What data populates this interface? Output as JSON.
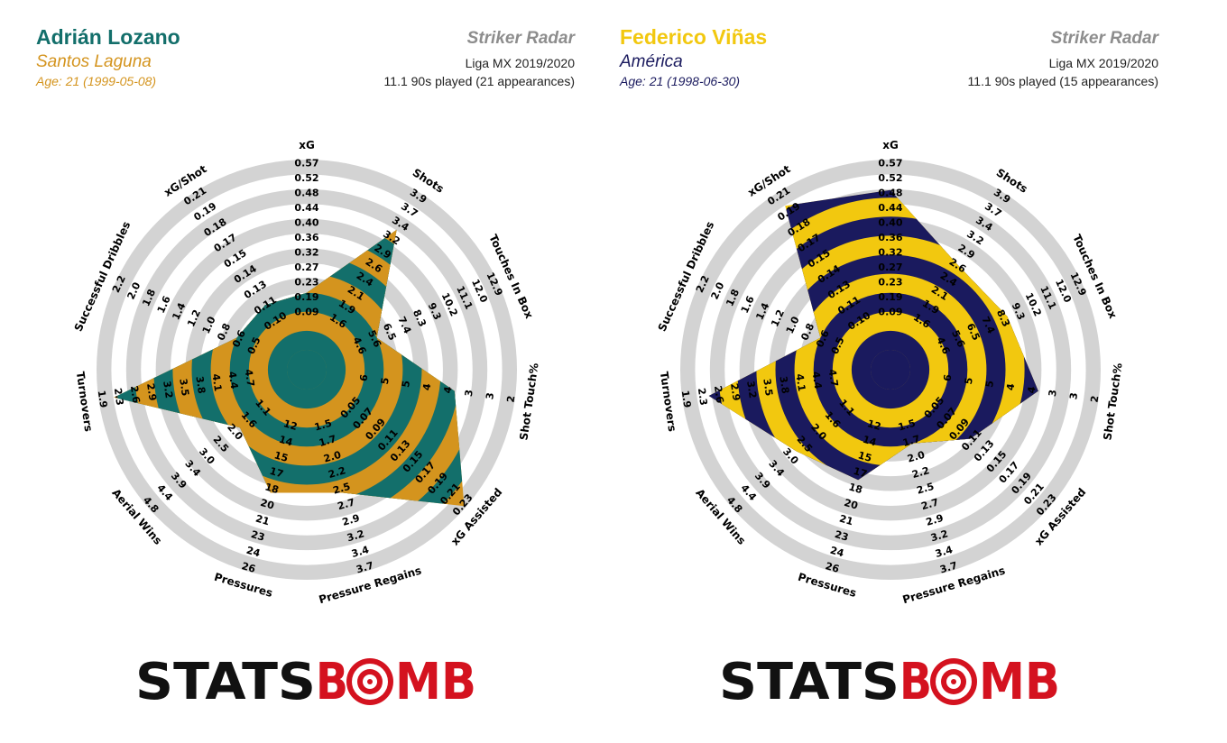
{
  "chart_data": [
    {
      "type": "radar",
      "title": "Striker Radar",
      "player": {
        "name": "Adrián Lozano",
        "club": "Santos Laguna",
        "age": "Age: 21 (1999-05-08)"
      },
      "league": "Liga MX 2019/2020",
      "played": "11.1 90s played (21 appearances)",
      "colors": {
        "name": "#136f6b",
        "club": "#d4941e",
        "age": "#d4941e",
        "band_a": "#d4941e",
        "band_b": "#136f6b",
        "ring": "#d3d3d3"
      },
      "axes": [
        {
          "label": "xG",
          "ticks": [
            "0.09",
            "0.19",
            "0.23",
            "0.27",
            "0.32",
            "0.36",
            "0.40",
            "0.44",
            "0.48",
            "0.52",
            "0.57"
          ]
        },
        {
          "label": "Shots",
          "ticks": [
            "1.6",
            "1.9",
            "2.1",
            "2.4",
            "2.6",
            "2.9",
            "3.2",
            "3.4",
            "3.7",
            "3.9"
          ]
        },
        {
          "label": "Touches In Box",
          "ticks": [
            "4.6",
            "5.6",
            "6.5",
            "7.4",
            "8.3",
            "9.3",
            "10.2",
            "11.1",
            "12.0",
            "12.9"
          ]
        },
        {
          "label": "Shot Touch%",
          "ticks": [
            "6",
            "5",
            "5",
            "4",
            "4",
            "3",
            "3",
            "2"
          ]
        },
        {
          "label": "xG Assisted",
          "ticks": [
            "0.05",
            "0.07",
            "0.09",
            "0.11",
            "0.13",
            "0.15",
            "0.17",
            "0.19",
            "0.21",
            "0.23"
          ]
        },
        {
          "label": "Pressure Regains",
          "ticks": [
            "1.5",
            "1.7",
            "2.0",
            "2.2",
            "2.5",
            "2.7",
            "2.9",
            "3.2",
            "3.4",
            "3.7"
          ]
        },
        {
          "label": "Pressures",
          "ticks": [
            "12",
            "14",
            "15",
            "17",
            "18",
            "20",
            "21",
            "23",
            "24",
            "26"
          ]
        },
        {
          "label": "Aerial Wins",
          "ticks": [
            "1.1",
            "1.6",
            "2.0",
            "2.5",
            "3.0",
            "3.4",
            "3.9",
            "4.4",
            "4.8"
          ]
        },
        {
          "label": "Turnovers",
          "ticks": [
            "4.7",
            "4.4",
            "4.1",
            "3.8",
            "3.5",
            "3.2",
            "2.9",
            "2.6",
            "2.3",
            "1.9"
          ]
        },
        {
          "label": "Successful Dribbles",
          "ticks": [
            "0.5",
            "0.6",
            "0.8",
            "1.0",
            "1.2",
            "1.4",
            "1.6",
            "1.8",
            "2.0",
            "2.2"
          ]
        },
        {
          "label": "xG/Shot",
          "ticks": [
            "0.10",
            "0.11",
            "0.13",
            "0.14",
            "0.15",
            "0.17",
            "0.18",
            "0.19",
            "0.21"
          ]
        }
      ],
      "values": [
        0.3,
        0.77,
        0.3,
        0.68,
        0.99,
        0.57,
        0.57,
        0.36,
        0.92,
        0.3,
        0.3
      ]
    },
    {
      "type": "radar",
      "title": "Striker Radar",
      "player": {
        "name": "Federico Viñas",
        "club": "América",
        "age": "Age: 21 (1998-06-30)"
      },
      "league": "Liga MX 2019/2020",
      "played": "11.1 90s played (15 appearances)",
      "colors": {
        "name": "#f2c80f",
        "club": "#1a1a5e",
        "age": "#1a1a5e",
        "band_a": "#f2c80f",
        "band_b": "#1a1a5e",
        "ring": "#d3d3d3"
      },
      "axes": [
        {
          "label": "xG",
          "ticks": [
            "0.09",
            "0.19",
            "0.23",
            "0.27",
            "0.32",
            "0.36",
            "0.40",
            "0.44",
            "0.48",
            "0.52",
            "0.57"
          ]
        },
        {
          "label": "Shots",
          "ticks": [
            "1.6",
            "1.9",
            "2.1",
            "2.4",
            "2.6",
            "2.9",
            "3.2",
            "3.4",
            "3.7",
            "3.9"
          ]
        },
        {
          "label": "Touches In Box",
          "ticks": [
            "4.6",
            "5.6",
            "6.5",
            "7.4",
            "8.3",
            "9.3",
            "10.2",
            "11.1",
            "12.0",
            "12.9"
          ]
        },
        {
          "label": "Shot Touch%",
          "ticks": [
            "6",
            "5",
            "5",
            "4",
            "4",
            "3",
            "3",
            "2"
          ]
        },
        {
          "label": "xG Assisted",
          "ticks": [
            "0.05",
            "0.07",
            "0.09",
            "0.11",
            "0.13",
            "0.15",
            "0.17",
            "0.19",
            "0.21",
            "0.23"
          ]
        },
        {
          "label": "Pressure Regains",
          "ticks": [
            "1.5",
            "1.7",
            "2.0",
            "2.2",
            "2.5",
            "2.7",
            "2.9",
            "3.2",
            "3.4",
            "3.7"
          ]
        },
        {
          "label": "Pressures",
          "ticks": [
            "12",
            "14",
            "15",
            "17",
            "18",
            "20",
            "21",
            "23",
            "24",
            "26"
          ]
        },
        {
          "label": "Aerial Wins",
          "ticks": [
            "1.1",
            "1.6",
            "2.0",
            "2.5",
            "3.0",
            "3.4",
            "3.9",
            "4.4",
            "4.8"
          ]
        },
        {
          "label": "Turnovers",
          "ticks": [
            "4.7",
            "4.4",
            "4.1",
            "3.8",
            "3.5",
            "3.2",
            "2.9",
            "2.6",
            "2.3",
            "1.9"
          ]
        },
        {
          "label": "Successful Dribbles",
          "ticks": [
            "0.5",
            "0.6",
            "0.8",
            "1.0",
            "1.2",
            "1.4",
            "1.6",
            "1.8",
            "2.0",
            "2.2"
          ]
        },
        {
          "label": "xG/Shot",
          "ticks": [
            "0.10",
            "0.11",
            "0.13",
            "0.14",
            "0.15",
            "0.17",
            "0.18",
            "0.19",
            "0.21"
          ]
        }
      ],
      "values": [
        0.84,
        0.55,
        0.57,
        0.68,
        0.45,
        0.3,
        0.5,
        0.55,
        0.86,
        0.3,
        0.92
      ]
    }
  ],
  "logo": {
    "text_a": "STATS",
    "text_b": "B",
    "text_c": "MB",
    "color_a": "#111111",
    "color_b": "#d4121f"
  }
}
